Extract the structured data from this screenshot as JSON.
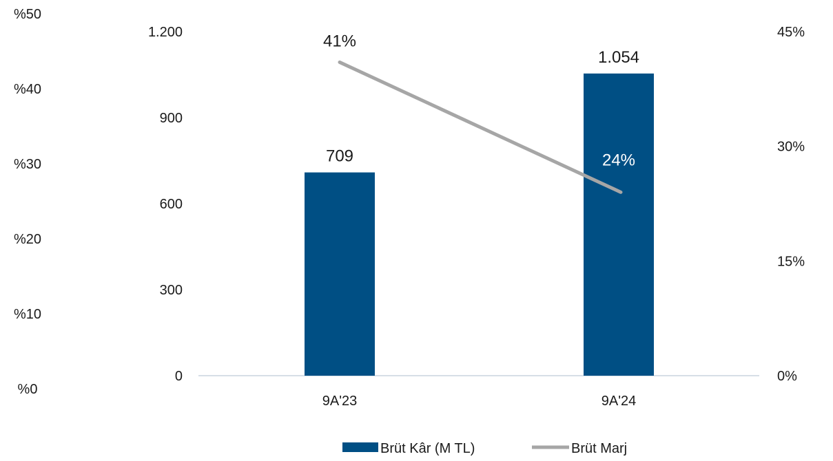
{
  "chart_data": {
    "type": "bar",
    "categories": [
      "9A'23",
      "9A'24"
    ],
    "series": [
      {
        "name": "Brüt Kâr (M TL)",
        "type": "bar",
        "values": [
          709,
          1054
        ],
        "data_labels": [
          "709",
          "1.054"
        ],
        "axis": "left",
        "color": "#004f84"
      },
      {
        "name": "Brüt Marj",
        "type": "line",
        "values": [
          41,
          24
        ],
        "data_labels": [
          "41%",
          "24%"
        ],
        "axis": "right",
        "color": "#a6a6a6"
      }
    ],
    "left_axis": {
      "ticks": [
        0,
        300,
        600,
        900,
        1200
      ],
      "tick_labels": [
        "0",
        "300",
        "600",
        "900",
        "1.200"
      ],
      "ylim": [
        0,
        1200
      ]
    },
    "right_axis": {
      "ticks": [
        0,
        15,
        30,
        45
      ],
      "tick_labels": [
        "0%",
        "15%",
        "30%",
        "45%"
      ],
      "ylim": [
        0,
        45
      ]
    },
    "far_left_axis": {
      "tick_labels": [
        "%0",
        "%10",
        "%20",
        "%30",
        "%40",
        "%50"
      ]
    },
    "grid": false,
    "legend_position": "bottom"
  }
}
